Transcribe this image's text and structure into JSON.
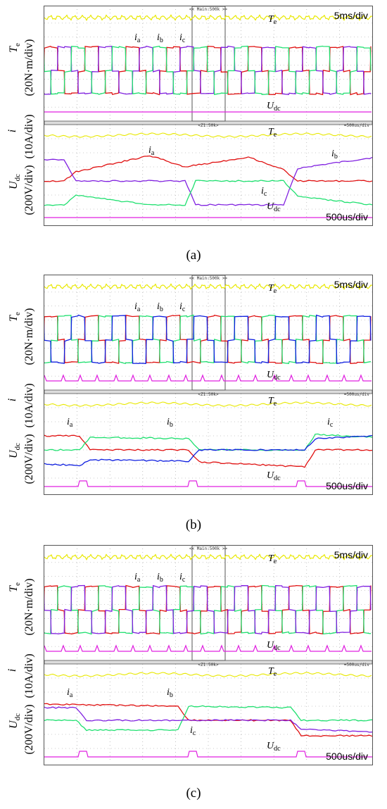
{
  "colors": {
    "yellow": "#e8e800",
    "red": "#e01010",
    "green": "#20e070",
    "purple": "#8020e0",
    "blue": "#1020e0",
    "magenta": "#e020e0",
    "grid": "#9a9a9a"
  },
  "panels": [
    {
      "id": "a",
      "caption": "(a)",
      "upper_time_label": "5ms/div",
      "lower_time_label": "500us/div",
      "zoom_tag_top": "<< Main:500k >>",
      "zoom_tag_mid": "<Z1:50k>",
      "mid_right_tag": "=500us/div",
      "curve_colors": [
        "red",
        "purple",
        "green"
      ],
      "labels": {
        "te": "T",
        "te_sub": "e",
        "ia": "i",
        "ia_sub": "a",
        "ib": "i",
        "ib_sub": "b",
        "ic": "i",
        "ic_sub": "c",
        "udc": "U",
        "udc_sub": "dc"
      },
      "udc_pulses": false
    },
    {
      "id": "b",
      "caption": "(b)",
      "upper_time_label": "5ms/div",
      "lower_time_label": "500us/div",
      "zoom_tag_top": "<< Main:500k >>",
      "zoom_tag_mid": "<Z1:50k>",
      "mid_right_tag": "=500us/div",
      "curve_colors": [
        "red",
        "green",
        "blue"
      ],
      "labels": {
        "te": "T",
        "te_sub": "e",
        "ia": "i",
        "ia_sub": "a",
        "ib": "i",
        "ib_sub": "b",
        "ic": "i",
        "ic_sub": "c",
        "udc": "U",
        "udc_sub": "dc"
      },
      "udc_pulses": true
    },
    {
      "id": "c",
      "caption": "(c)",
      "upper_time_label": "5ms/div",
      "lower_time_label": "500us/div",
      "zoom_tag_top": "<< Main:500k >>",
      "zoom_tag_mid": "<Z1:50k>",
      "mid_right_tag": "=500us/div",
      "curve_colors": [
        "red",
        "green",
        "purple"
      ],
      "labels": {
        "te": "T",
        "te_sub": "e",
        "ia": "i",
        "ia_sub": "a",
        "ib": "i",
        "ib_sub": "b",
        "ic": "i",
        "ic_sub": "c",
        "udc": "U",
        "udc_sub": "dc"
      },
      "udc_pulses": true
    }
  ],
  "axis_labels": {
    "upper_symbol": "T",
    "upper_sub": "e",
    "upper_unit": "(20N·m/div)",
    "mid_symbol": "i",
    "mid_unit": "(10A/div)",
    "lower_symbol": "U",
    "lower_sub": "dc",
    "lower_unit": "(200V/div)"
  },
  "chart_data": [
    {
      "type": "line",
      "panel": "a",
      "description_series": [
        "T_e",
        "i_a",
        "i_b",
        "i_c",
        "U_dc"
      ],
      "upper_time_per_div": "5ms/div",
      "lower_time_per_div": "500us/div"
    },
    {
      "type": "line",
      "panel": "b",
      "description_series": [
        "T_e",
        "i_a",
        "i_b",
        "i_c",
        "U_dc"
      ],
      "upper_time_per_div": "5ms/div",
      "lower_time_per_div": "500us/div"
    },
    {
      "type": "line",
      "panel": "c",
      "description_series": [
        "T_e",
        "i_a",
        "i_b",
        "i_c",
        "U_dc"
      ],
      "upper_time_per_div": "5ms/div",
      "lower_time_per_div": "500us/div"
    }
  ]
}
